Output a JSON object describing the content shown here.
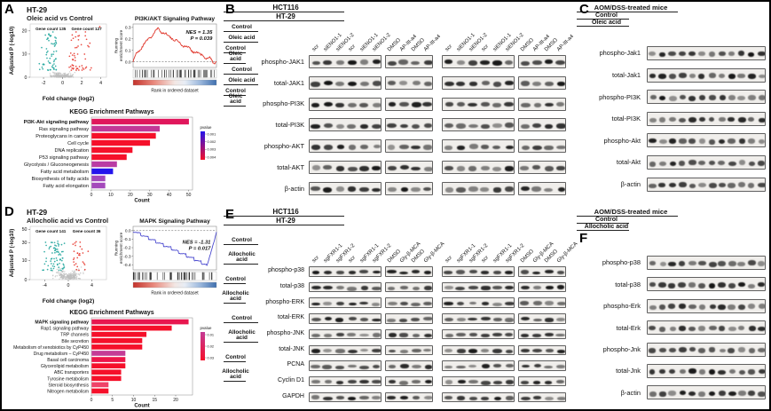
{
  "panels": {
    "A": {
      "label": "A",
      "cell_line": "HT-29",
      "comparison": "Oleic acid vs Control"
    },
    "B": {
      "label": "B",
      "cell_lines": [
        "HCT116",
        "HT-29"
      ],
      "treatments": [
        "Control",
        "Oleic acid"
      ],
      "sirna_lanes": [
        "scr",
        "siENO1-1",
        "siENO1-2"
      ],
      "drug_lanes": [
        "DMSO",
        "AP-III-a4"
      ],
      "rows": [
        "phospho-JAK1",
        "total-JAK1",
        "phospho-PI3K",
        "total-PI3K",
        "phospho-AKT",
        "total-AKT",
        "β-actin"
      ],
      "seed": 7
    },
    "C": {
      "label": "C",
      "header": "AOM/DSS-treated mice",
      "groups": [
        "Control",
        "Oleic acid"
      ],
      "lanes_per_group": 6,
      "rows": [
        "phospho-Jak1",
        "total-Jak1",
        "phospho-PI3K",
        "total-PI3K",
        "phospho-Akt",
        "total-Akt",
        "β-actin"
      ],
      "seed": 13
    },
    "D": {
      "label": "D",
      "cell_line": "HT-29",
      "comparison": "Allocholic acid vs Control"
    },
    "E": {
      "label": "E",
      "cell_lines": [
        "HCT116",
        "HT-29"
      ],
      "treatments": [
        "Control",
        "Allocholic acid"
      ],
      "sirna_lanes": [
        "scr",
        "sgFXR1-1",
        "sgFXR1-2"
      ],
      "drug_lanes": [
        "DMSO",
        "Gly-β-MCA"
      ],
      "rows": [
        "phospho-p38",
        "total-p38",
        "phospho-ERK",
        "total-ERK",
        "phospho-JNK",
        "total-JNK",
        "PCNA",
        "Cyclin D1",
        "GAPDH"
      ],
      "seed": 19
    },
    "F": {
      "label": "F",
      "header": "AOM/DSS-treated mice",
      "groups": [
        "Control",
        "Allocholic acid"
      ],
      "lanes_per_group": 6,
      "rows": [
        "phospho-p38",
        "total-p38",
        "phospho-Erk",
        "total-Erk",
        "phospho-Jnk",
        "total-Jnk",
        "β-actin"
      ],
      "seed": 23
    }
  },
  "chart_data": [
    {
      "panel": "A",
      "role": "volcano",
      "type": "scatter",
      "title": "HT-29",
      "subtitle": "Oleic acid vs Control",
      "xlabel": "Fold change (log2)",
      "ylabel": "Adjusted P (-log10)",
      "xlim": [
        -3.4,
        4.6
      ],
      "ylim": [
        0,
        23
      ],
      "xticks": [
        -2,
        0,
        2,
        4
      ],
      "yticks": [
        0,
        10,
        20
      ],
      "down_label": "Gene count 135",
      "up_label": "Gene count 127",
      "down_color": "#21a69d",
      "up_color": "#e8392f",
      "ns_color": "#bdbdbd",
      "seed": 11,
      "spread": 1.05,
      "n_down": 60,
      "n_up": 55,
      "sig_ymax": 20,
      "down_xmax": 2.6,
      "up_xmax": 3.2,
      "extra_up": [
        [
          3.9,
          21.8
        ]
      ],
      "ypow": 1
    },
    {
      "panel": "A",
      "role": "gsea",
      "type": "line",
      "title": "PI3K/AKT Signaling Pathway",
      "nes": "NES = 1.35",
      "p": "P = 0.039",
      "ylabel": [
        "Running",
        "enrichment score"
      ],
      "xlabel": "Rank in ordered dataset",
      "yticks": [
        0.3,
        0.2,
        0.1,
        0.0
      ],
      "ylim": [
        -0.05,
        0.33
      ],
      "direction": "up",
      "peak": 0.285,
      "line_color": "#e0382d",
      "seed": 21,
      "stats_frac": [
        0.95,
        0.22
      ]
    },
    {
      "panel": "A",
      "role": "kegg",
      "type": "bar",
      "title": "KEGG Enrichment Pathways",
      "xlabel": "Count",
      "xticks": [
        0,
        10,
        20,
        30,
        40,
        50
      ],
      "xlim": [
        0,
        52
      ],
      "categories": [
        "PI3K-Akt signaling pathway",
        "Ras signaling pathway",
        "Proteoglycans in cancer",
        "Cell cycle",
        "DNA replication",
        "P53 signaling pathway",
        "Glycolysis / Gluconeogenesis",
        "Fatty acid metabolism",
        "Biosynthesis of fatty acids",
        "Fatty acid elongation"
      ],
      "values": [
        50,
        35,
        33,
        30,
        21,
        18,
        13,
        11,
        7,
        7
      ],
      "colors": [
        "#e0175c",
        "#c23897",
        "#f5102a",
        "#f5102a",
        "#f5102a",
        "#f5102a",
        "#ba3ba4",
        "#2414ec",
        "#a448bb",
        "#a448bb"
      ],
      "first_label_color": "#e52613",
      "legend": {
        "title": "pvalue",
        "labels": [
          "0.001",
          "0.002",
          "0.003",
          "0.004"
        ],
        "top_color": "#2414ec",
        "bottom_color": "#f5102a"
      }
    },
    {
      "panel": "D",
      "role": "volcano",
      "type": "scatter",
      "title": "HT-29",
      "subtitle": "Allocholic acid vs Control",
      "xlabel": "Fold change (log2)",
      "ylabel": "Adjusted P (-log10)",
      "xlim": [
        -6.5,
        6.5
      ],
      "ylim": [
        0,
        55
      ],
      "xticks": [
        -4,
        0,
        4
      ],
      "yticks": [
        0,
        10,
        30,
        50
      ],
      "down_label": "Gene count 141",
      "up_label": "Gene count 36",
      "down_color": "#21a69d",
      "up_color": "#e8392f",
      "ns_color": "#bdbdbd",
      "seed": 31,
      "spread": 2.1,
      "n_down": 75,
      "n_up": 28,
      "sig_ymax": 32,
      "down_xmax": 5.0,
      "up_xmax": 4.0,
      "extra_up": [],
      "ypow": 0.6
    },
    {
      "panel": "D",
      "role": "gsea",
      "type": "line",
      "title": "MAPK Signaling Pathway",
      "nes": "NES = -1.31",
      "p": "P = 0.017",
      "ylabel": [
        "Running",
        "enrichment score"
      ],
      "xlabel": "Rank in ordered dataset",
      "yticks": [
        0.0,
        -0.1,
        -0.2,
        -0.3,
        -0.4
      ],
      "ylim": [
        -0.46,
        0.05
      ],
      "direction": "down",
      "peak": -0.42,
      "line_color": "#4a49cf",
      "seed": 41,
      "stats_frac": [
        0.93,
        0.4
      ]
    },
    {
      "panel": "D",
      "role": "kegg",
      "type": "bar",
      "title": "KEGG Enrichment Pathways",
      "xlabel": "Count",
      "xticks": [
        0,
        5,
        10,
        15,
        20
      ],
      "xlim": [
        0,
        24
      ],
      "categories": [
        "MAPK signaling pathway",
        "Rap1 signaling pathway",
        "TRP channels",
        "Bile secretion",
        "Metabolism of xenobiotics by CyP450",
        "Drug metabolism – CyP450",
        "Basal cell carcinoma",
        "Glycerolipid metabolism",
        "ABC transporters",
        "Tyrosine metabolism",
        "Steroid biosynthesis",
        "Nitrogen metabolism"
      ],
      "values": [
        23,
        19,
        13,
        12,
        12,
        8,
        8,
        8,
        7,
        7,
        4,
        4
      ],
      "colors": [
        "#e8174f",
        "#f5102a",
        "#f5102a",
        "#f5102a",
        "#f5102a",
        "#c43c96",
        "#ee164a",
        "#f5102a",
        "#f5102a",
        "#f5102a",
        "#ef4368",
        "#f5102a"
      ],
      "first_label_color": "#e52613",
      "legend": {
        "title": "pvalue",
        "labels": [
          "0.01",
          "0.02",
          "0.03"
        ],
        "top_color": "#c43c96",
        "bottom_color": "#f5102a"
      }
    }
  ]
}
